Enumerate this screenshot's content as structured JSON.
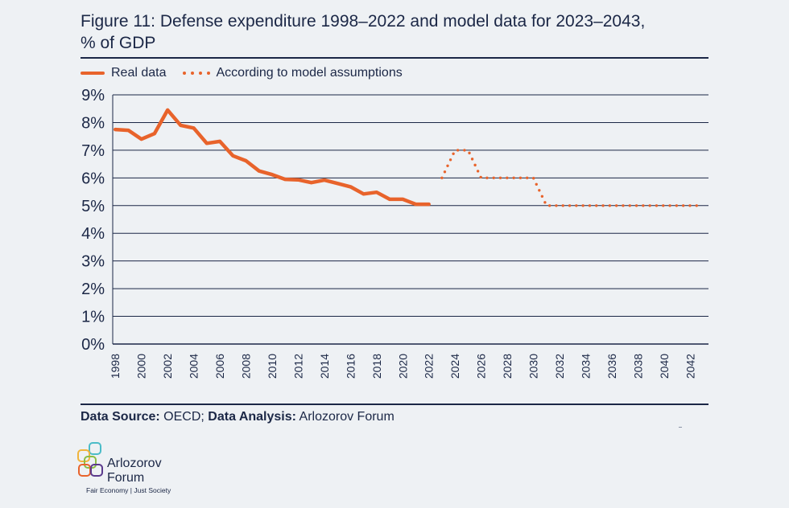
{
  "figure": {
    "title_line1": "Figure 11: Defense expenditure 1998–2022 and model data for 2023–2043,",
    "title_line2": "% of GDP"
  },
  "legend": {
    "real_label": "Real data",
    "model_label": "According to model assumptions"
  },
  "source": {
    "data_source_label": "Data Source:",
    "data_source_value": "OECD;",
    "analysis_label": "Data Analysis:",
    "analysis_value": "Arlozorov Forum"
  },
  "logo": {
    "name_line1": "Arlozorov",
    "name_line2": "Forum",
    "tagline": "Fair Economy | Just Society"
  },
  "colors": {
    "series": "#e8632b",
    "text": "#1b2746",
    "grid": "#1b2746",
    "background": "#eef1f4"
  },
  "chart_data": {
    "type": "line",
    "title": "Defense expenditure 1998–2022 and model data for 2023–2043, % of GDP",
    "xlabel": "",
    "ylabel": "% of GDP",
    "ylim": [
      0,
      9
    ],
    "y_ticks": [
      "0%",
      "1%",
      "2%",
      "3%",
      "4%",
      "5%",
      "6%",
      "7%",
      "8%",
      "9%"
    ],
    "x_ticks": [
      "1998",
      "2000",
      "2002",
      "2004",
      "2006",
      "2008",
      "2010",
      "2012",
      "2014",
      "2016",
      "2018",
      "2020",
      "2022",
      "2024",
      "2026",
      "2028",
      "2030",
      "2032",
      "2034",
      "2036",
      "2038",
      "2040",
      "2042"
    ],
    "grid": true,
    "legend_position": "top-left",
    "series": [
      {
        "name": "Real data",
        "style": "solid",
        "x": [
          1998,
          1999,
          2000,
          2001,
          2002,
          2003,
          2004,
          2005,
          2006,
          2007,
          2008,
          2009,
          2010,
          2011,
          2012,
          2013,
          2014,
          2015,
          2016,
          2017,
          2018,
          2019,
          2020,
          2021,
          2022
        ],
        "values": [
          7.75,
          7.72,
          7.4,
          7.6,
          8.45,
          7.9,
          7.8,
          7.25,
          7.32,
          6.8,
          6.62,
          6.25,
          6.12,
          5.95,
          5.93,
          5.83,
          5.92,
          5.8,
          5.68,
          5.42,
          5.48,
          5.23,
          5.23,
          5.05,
          5.05
        ]
      },
      {
        "name": "According to model assumptions",
        "style": "dotted",
        "x": [
          2023,
          2024,
          2025,
          2026,
          2027,
          2028,
          2029,
          2030,
          2031,
          2032,
          2033,
          2034,
          2035,
          2036,
          2037,
          2038,
          2039,
          2040,
          2041,
          2042,
          2043
        ],
        "values": [
          6.0,
          7.0,
          7.0,
          6.0,
          6.0,
          6.0,
          6.0,
          6.0,
          5.0,
          5.0,
          5.0,
          5.0,
          5.0,
          5.0,
          5.0,
          5.0,
          5.0,
          5.0,
          5.0,
          5.0,
          5.0
        ]
      }
    ]
  }
}
